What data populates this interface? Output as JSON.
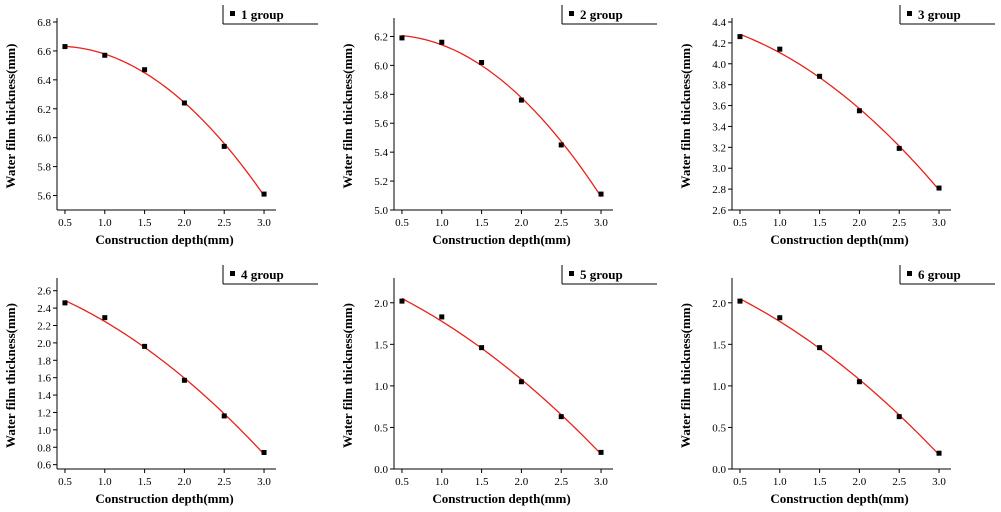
{
  "chart_data": [
    {
      "type": "scatter",
      "xlabel": "Construction depth(mm)",
      "ylabel": "Water film thickness(mm)",
      "xlim": [
        0.4,
        3.1
      ],
      "ylim": [
        5.5,
        6.8
      ],
      "xticks": [
        "0.5",
        "1.0",
        "1.5",
        "2.0",
        "2.5",
        "3.0"
      ],
      "yticks": [
        "5.6",
        "5.8",
        "6.0",
        "6.2",
        "6.4",
        "6.6",
        "6.8"
      ],
      "series": [
        {
          "name": "1 group",
          "x": [
            0.5,
            1.0,
            1.5,
            2.0,
            2.5,
            3.0
          ],
          "y": [
            6.63,
            6.57,
            6.47,
            6.24,
            5.94,
            5.61
          ]
        }
      ],
      "fit": {
        "type": "quadratic",
        "color": "#e8221b"
      },
      "legend": "top-right"
    },
    {
      "type": "scatter",
      "xlabel": "Construction depth(mm)",
      "ylabel": "Water film thickness(mm)",
      "xlim": [
        0.4,
        3.1
      ],
      "ylim": [
        5.0,
        6.3
      ],
      "xticks": [
        "0.5",
        "1.0",
        "1.5",
        "2.0",
        "2.5",
        "3.0"
      ],
      "yticks": [
        "5.0",
        "5.2",
        "5.4",
        "5.6",
        "5.8",
        "6.0",
        "6.2"
      ],
      "series": [
        {
          "name": "2 group",
          "x": [
            0.5,
            1.0,
            1.5,
            2.0,
            2.5,
            3.0
          ],
          "y": [
            6.19,
            6.16,
            6.02,
            5.76,
            5.45,
            5.11
          ]
        }
      ],
      "fit": {
        "type": "quadratic",
        "color": "#e8221b"
      },
      "legend": "top-right"
    },
    {
      "type": "scatter",
      "xlabel": "Construction depth(mm)",
      "ylabel": "Water film thickness(mm)",
      "xlim": [
        0.4,
        3.1
      ],
      "ylim": [
        2.6,
        4.4
      ],
      "xticks": [
        "0.5",
        "1.0",
        "1.5",
        "2.0",
        "2.5",
        "3.0"
      ],
      "yticks": [
        "2.6",
        "2.8",
        "3.0",
        "3.2",
        "3.4",
        "3.6",
        "3.8",
        "4.0",
        "4.2",
        "4.4"
      ],
      "series": [
        {
          "name": "3 group",
          "x": [
            0.5,
            1.0,
            1.5,
            2.0,
            2.5,
            3.0
          ],
          "y": [
            4.26,
            4.14,
            3.88,
            3.55,
            3.19,
            2.81
          ]
        }
      ],
      "fit": {
        "type": "quadratic",
        "color": "#e8221b"
      },
      "legend": "top-right"
    },
    {
      "type": "scatter",
      "xlabel": "Construction depth(mm)",
      "ylabel": "Water film thickness(mm)",
      "xlim": [
        0.4,
        3.1
      ],
      "ylim": [
        0.55,
        2.7
      ],
      "xticks": [
        "0.5",
        "1.0",
        "1.5",
        "2.0",
        "2.5",
        "3.0"
      ],
      "yticks": [
        "0.6",
        "0.8",
        "1.0",
        "1.2",
        "1.4",
        "1.6",
        "1.8",
        "2.0",
        "2.2",
        "2.4",
        "2.6"
      ],
      "series": [
        {
          "name": "4 group",
          "x": [
            0.5,
            1.0,
            1.5,
            2.0,
            2.5,
            3.0
          ],
          "y": [
            2.46,
            2.29,
            1.96,
            1.57,
            1.16,
            0.74
          ]
        }
      ],
      "fit": {
        "type": "quadratic",
        "color": "#e8221b"
      },
      "legend": "top-right"
    },
    {
      "type": "scatter",
      "xlabel": "Construction depth(mm)",
      "ylabel": "Water film thickness(mm)",
      "xlim": [
        0.4,
        3.1
      ],
      "ylim": [
        0.0,
        2.25
      ],
      "xticks": [
        "0.5",
        "1.0",
        "1.5",
        "2.0",
        "2.5",
        "3.0"
      ],
      "yticks": [
        "0.0",
        "0.5",
        "1.0",
        "1.5",
        "2.0"
      ],
      "series": [
        {
          "name": "5 group",
          "x": [
            0.5,
            1.0,
            1.5,
            2.0,
            2.5,
            3.0
          ],
          "y": [
            2.02,
            1.83,
            1.46,
            1.05,
            0.63,
            0.2
          ]
        }
      ],
      "fit": {
        "type": "quadratic",
        "color": "#e8221b"
      },
      "legend": "top-right"
    },
    {
      "type": "scatter",
      "xlabel": "Construction depth(mm)",
      "ylabel": "Water film thickness(mm)",
      "xlim": [
        0.4,
        3.1
      ],
      "ylim": [
        0.0,
        2.25
      ],
      "xticks": [
        "0.5",
        "1.0",
        "1.5",
        "2.0",
        "2.5",
        "3.0"
      ],
      "yticks": [
        "0.0",
        "0.5",
        "1.0",
        "1.5",
        "2.0"
      ],
      "series": [
        {
          "name": "6 group",
          "x": [
            0.5,
            1.0,
            1.5,
            2.0,
            2.5,
            3.0
          ],
          "y": [
            2.02,
            1.82,
            1.46,
            1.05,
            0.63,
            0.19
          ]
        }
      ],
      "fit": {
        "type": "quadratic",
        "color": "#e8221b"
      },
      "legend": "top-right"
    }
  ]
}
